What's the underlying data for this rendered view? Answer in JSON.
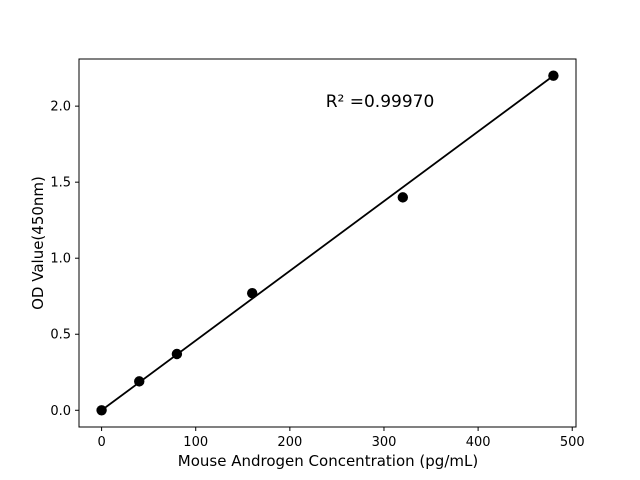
{
  "chart_data": {
    "type": "scatter",
    "title": "",
    "xlabel": "Mouse Androgen Concentration (pg/mL)",
    "ylabel": "OD Value(450nm)",
    "annotation": "R² =0.99970",
    "x": [
      0,
      40,
      80,
      160,
      320,
      480
    ],
    "y": [
      0.0,
      0.19,
      0.37,
      0.77,
      1.4,
      2.2
    ],
    "fit_line": {
      "x": [
        0,
        480
      ],
      "y": [
        0.0,
        2.2
      ]
    },
    "xticks": [
      "0",
      "100",
      "200",
      "300",
      "400",
      "500"
    ],
    "yticks": [
      "0.0",
      "0.5",
      "1.0",
      "1.5",
      "2.0"
    ],
    "xlim": [
      -24,
      504
    ],
    "ylim": [
      -0.11,
      2.31
    ],
    "grid": false,
    "legend": "none",
    "marker_color": "#000000",
    "line_color": "#000000",
    "frame_color": "#000000",
    "background": "#ffffff"
  }
}
